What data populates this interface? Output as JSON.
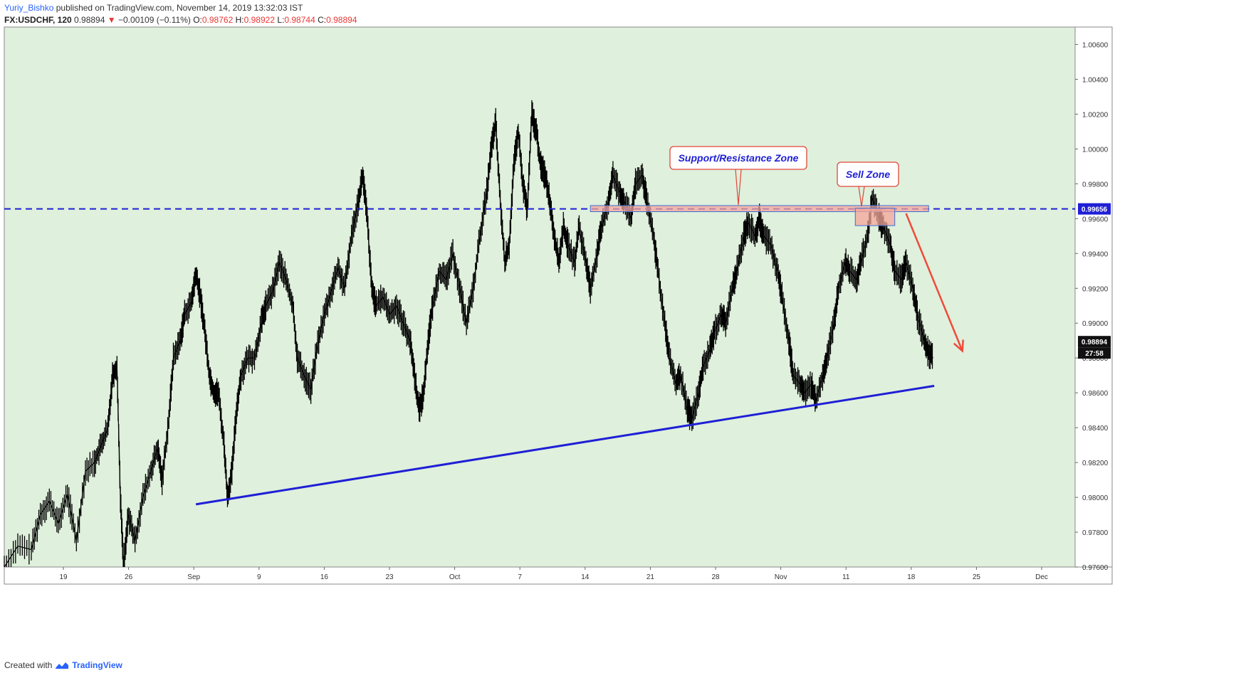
{
  "header": {
    "author": "Yuriy_Bishko",
    "published": "published on TradingView.com, November 14, 2019 13:32:03 IST",
    "symbol": "FX:USDCHF, 120",
    "last": "0.98894",
    "arrow": "▼",
    "change": "−0.00109 (−0.11%)",
    "o_label": "O:",
    "o": "0.98762",
    "h_label": "H:",
    "h": "0.98922",
    "l_label": "L:",
    "l": "0.98744",
    "c_label": "C:",
    "c": "0.98894"
  },
  "footer": {
    "created": "Created with",
    "brand": "TradingView"
  },
  "colors": {
    "background": "#dff0dc",
    "candle": "#000000",
    "trendline": "#1f1fd6",
    "hline": "#1f1fd6",
    "zone_fill": "#f4a69a",
    "arrow": "#ef4b3b",
    "annotation_text": "#1f1fd6"
  },
  "chart_data": {
    "type": "line",
    "symbol": "FX:USDCHF",
    "interval": "120",
    "ylim": [
      0.976,
      1.007
    ],
    "y_ticks": [
      "1.00600",
      "1.00400",
      "1.00200",
      "1.00000",
      "0.99800",
      "0.99600",
      "0.99400",
      "0.99200",
      "0.99000",
      "0.98800",
      "0.98600",
      "0.98400",
      "0.98200",
      "0.98000",
      "0.97800",
      "0.97600"
    ],
    "x_ticks": [
      "19",
      "26",
      "Sep",
      "9",
      "16",
      "23",
      "Oct",
      "7",
      "14",
      "21",
      "28",
      "Nov",
      "11",
      "18",
      "25",
      "Dec"
    ],
    "series": [
      {
        "values": [
          [
            0,
            0.976
          ],
          [
            1.2,
            0.9772
          ],
          [
            2.4,
            0.977
          ],
          [
            3.2,
            0.979
          ],
          [
            4,
            0.9798
          ],
          [
            4.8,
            0.9785
          ],
          [
            5.6,
            0.9802
          ],
          [
            6.4,
            0.9775
          ],
          [
            7.2,
            0.9815
          ],
          [
            8,
            0.982
          ],
          [
            8.6,
            0.983
          ],
          [
            9.2,
            0.984
          ],
          [
            9.6,
            0.987
          ],
          [
            10,
            0.9875
          ],
          [
            10.3,
            0.98
          ],
          [
            10.6,
            0.976
          ],
          [
            11,
            0.979
          ],
          [
            11.6,
            0.9775
          ],
          [
            12.3,
            0.98
          ],
          [
            13,
            0.9815
          ],
          [
            13.6,
            0.9828
          ],
          [
            14,
            0.981
          ],
          [
            14.6,
            0.9845
          ],
          [
            15,
            0.988
          ],
          [
            15.6,
            0.989
          ],
          [
            16,
            0.9905
          ],
          [
            16.6,
            0.9912
          ],
          [
            17,
            0.9928
          ],
          [
            17.4,
            0.9915
          ],
          [
            17.8,
            0.9895
          ],
          [
            18.2,
            0.987
          ],
          [
            18.6,
            0.986
          ],
          [
            19,
            0.986
          ],
          [
            19.5,
            0.983
          ],
          [
            19.8,
            0.98
          ],
          [
            20.2,
            0.9815
          ],
          [
            20.6,
            0.985
          ],
          [
            21,
            0.987
          ],
          [
            21.6,
            0.988
          ],
          [
            22.2,
            0.988
          ],
          [
            22.8,
            0.99
          ],
          [
            23.2,
            0.991
          ],
          [
            23.8,
            0.9918
          ],
          [
            24.4,
            0.9935
          ],
          [
            25,
            0.9925
          ],
          [
            25.6,
            0.991
          ],
          [
            26,
            0.988
          ],
          [
            26.6,
            0.987
          ],
          [
            27.2,
            0.9862
          ],
          [
            27.8,
            0.9888
          ],
          [
            28.4,
            0.9905
          ],
          [
            29,
            0.9918
          ],
          [
            29.6,
            0.9932
          ],
          [
            30.2,
            0.992
          ],
          [
            30.8,
            0.995
          ],
          [
            31.4,
            0.997
          ],
          [
            31.8,
            0.9985
          ],
          [
            32.2,
            0.996
          ],
          [
            32.6,
            0.992
          ],
          [
            33,
            0.991
          ],
          [
            33.6,
            0.9915
          ],
          [
            34.2,
            0.9905
          ],
          [
            34.8,
            0.991
          ],
          [
            35.4,
            0.99
          ],
          [
            36,
            0.989
          ],
          [
            36.4,
            0.987
          ],
          [
            36.8,
            0.985
          ],
          [
            37.2,
            0.986
          ],
          [
            37.6,
            0.989
          ],
          [
            38,
            0.991
          ],
          [
            38.6,
            0.993
          ],
          [
            39.2,
            0.9925
          ],
          [
            39.8,
            0.994
          ],
          [
            40.4,
            0.992
          ],
          [
            41,
            0.99
          ],
          [
            41.6,
            0.992
          ],
          [
            42.2,
            0.995
          ],
          [
            42.8,
            0.9975
          ],
          [
            43.2,
            1.0
          ],
          [
            43.6,
            1.0015
          ],
          [
            44,
            0.997
          ],
          [
            44.4,
            0.9935
          ],
          [
            44.8,
            0.9945
          ],
          [
            45.2,
            0.999
          ],
          [
            45.6,
            1.001
          ],
          [
            46,
            0.998
          ],
          [
            46.4,
            0.9965
          ],
          [
            46.8,
            1.002
          ],
          [
            47.2,
            1.001
          ],
          [
            47.6,
            0.999
          ],
          [
            48,
            0.9985
          ],
          [
            48.4,
            0.997
          ],
          [
            48.8,
            0.995
          ],
          [
            49.2,
            0.9935
          ],
          [
            49.6,
            0.9955
          ],
          [
            50,
            0.9945
          ],
          [
            50.6,
            0.9935
          ],
          [
            51,
            0.9955
          ],
          [
            51.6,
            0.9935
          ],
          [
            52,
            0.992
          ],
          [
            52.6,
            0.994
          ],
          [
            53,
            0.9955
          ],
          [
            53.6,
            0.997
          ],
          [
            54,
            0.9985
          ],
          [
            54.6,
            0.9975
          ],
          [
            55,
            0.997
          ],
          [
            55.6,
            0.996
          ],
          [
            56,
            0.998
          ],
          [
            56.6,
            0.9985
          ],
          [
            57,
            0.997
          ],
          [
            57.6,
            0.995
          ],
          [
            58,
            0.993
          ],
          [
            58.6,
            0.99
          ],
          [
            59,
            0.988
          ],
          [
            59.6,
            0.9865
          ],
          [
            60,
            0.987
          ],
          [
            60.6,
            0.985
          ],
          [
            61,
            0.9845
          ],
          [
            61.6,
            0.986
          ],
          [
            62,
            0.9875
          ],
          [
            62.6,
            0.9885
          ],
          [
            63,
            0.9895
          ],
          [
            63.6,
            0.9905
          ],
          [
            64,
            0.99
          ],
          [
            64.6,
            0.992
          ],
          [
            65,
            0.993
          ],
          [
            65.6,
            0.995
          ],
          [
            66,
            0.9958
          ],
          [
            66.6,
            0.995
          ],
          [
            67,
            0.996
          ],
          [
            67.4,
            0.995
          ],
          [
            68,
            0.9945
          ],
          [
            68.6,
            0.993
          ],
          [
            69,
            0.9915
          ],
          [
            69.6,
            0.989
          ],
          [
            70,
            0.987
          ],
          [
            70.6,
            0.9865
          ],
          [
            71,
            0.986
          ],
          [
            71.6,
            0.9865
          ],
          [
            72,
            0.9855
          ],
          [
            72.6,
            0.987
          ],
          [
            73,
            0.988
          ],
          [
            73.6,
            0.99
          ],
          [
            74,
            0.992
          ],
          [
            74.6,
            0.9935
          ],
          [
            75,
            0.993
          ],
          [
            75.6,
            0.9925
          ],
          [
            76,
            0.9935
          ],
          [
            76.6,
            0.995
          ],
          [
            77,
            0.9972
          ],
          [
            77.6,
            0.996
          ],
          [
            78,
            0.9955
          ],
          [
            78.6,
            0.9945
          ],
          [
            79,
            0.993
          ],
          [
            79.6,
            0.9925
          ],
          [
            80,
            0.9935
          ],
          [
            80.6,
            0.992
          ],
          [
            81,
            0.9905
          ],
          [
            81.6,
            0.989
          ],
          [
            82,
            0.9883
          ],
          [
            82.4,
            0.988
          ]
        ]
      }
    ],
    "x_range": [
      0,
      95
    ],
    "annotations": [
      "Support/Resistance Zone",
      "Sell Zone"
    ],
    "horizontal_level": 0.99656,
    "level_label": "0.99656",
    "last_price_label": "0.98894",
    "countdown": "27:58",
    "trendline": [
      [
        17.0,
        0.9796
      ],
      [
        82.5,
        0.9864
      ]
    ],
    "sell_arrow": [
      [
        80.0,
        0.9963
      ],
      [
        85.0,
        0.9884
      ]
    ]
  }
}
